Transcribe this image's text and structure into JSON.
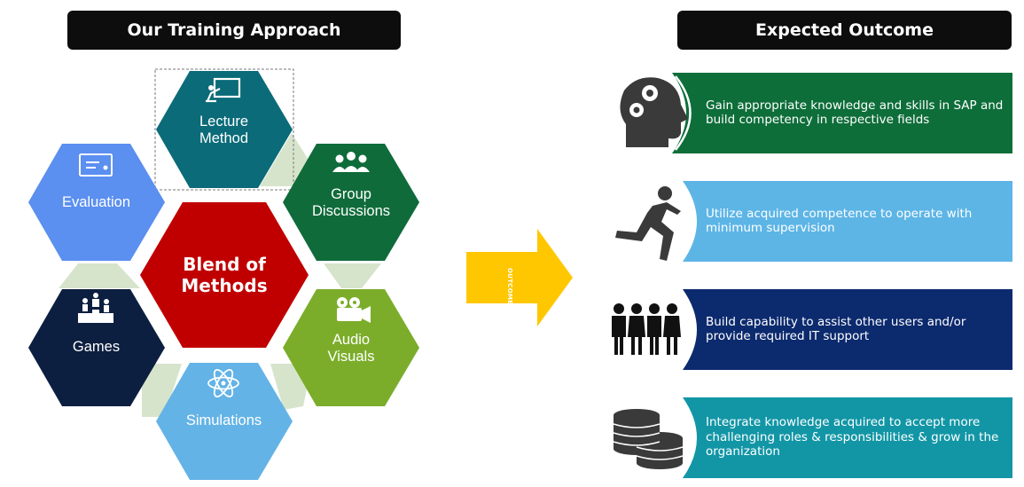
{
  "headers": {
    "left": "Our Training Approach",
    "right": "Expected Outcome"
  },
  "methods": {
    "center": "Blend of Methods",
    "lecture": "Lecture Method",
    "group": "Group Discussions",
    "evaluation": "Evaluation",
    "games": "Games",
    "audio": "Audio Visuals",
    "simulations": "Simulations"
  },
  "arrow": {
    "label": "OUTCOME"
  },
  "outcomes": [
    {
      "text": "Gain appropriate knowledge and skills in SAP and build competency in respective fields",
      "icon": "head-gears-icon",
      "color": "#0e6e3a"
    },
    {
      "text": "Utilize acquired competence to operate with minimum supervision",
      "icon": "running-person-icon",
      "color": "#5db5e6"
    },
    {
      "text": "Build capability to assist other users and/or provide required IT support",
      "icon": "people-group-icon",
      "color": "#0c2a6e"
    },
    {
      "text": "Integrate knowledge acquired to accept more challenging roles & responsibilities & grow in the organization",
      "icon": "coin-stack-icon",
      "color": "#1296a6"
    }
  ],
  "colors": {
    "lecture": "#0b6b78",
    "group": "#0f6b3a",
    "evaluation": "#5b8ff0",
    "center": "#c00000",
    "games": "#0c1f40",
    "audio": "#7bad2a",
    "simulations": "#63b3e6",
    "connector": "#d7e4cc",
    "arrow": "#ffc700",
    "icon_gray": "#3a3a3a"
  }
}
